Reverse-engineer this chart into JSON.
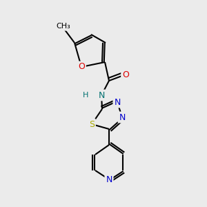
{
  "bg_color": "#ebebeb",
  "atom_colors": {
    "C": "#000000",
    "N": "#0000cc",
    "O": "#dd0000",
    "S": "#aaaa00",
    "H": "#008080",
    "NH": "#007070"
  },
  "bond_color": "#000000",
  "bond_width": 1.5
}
